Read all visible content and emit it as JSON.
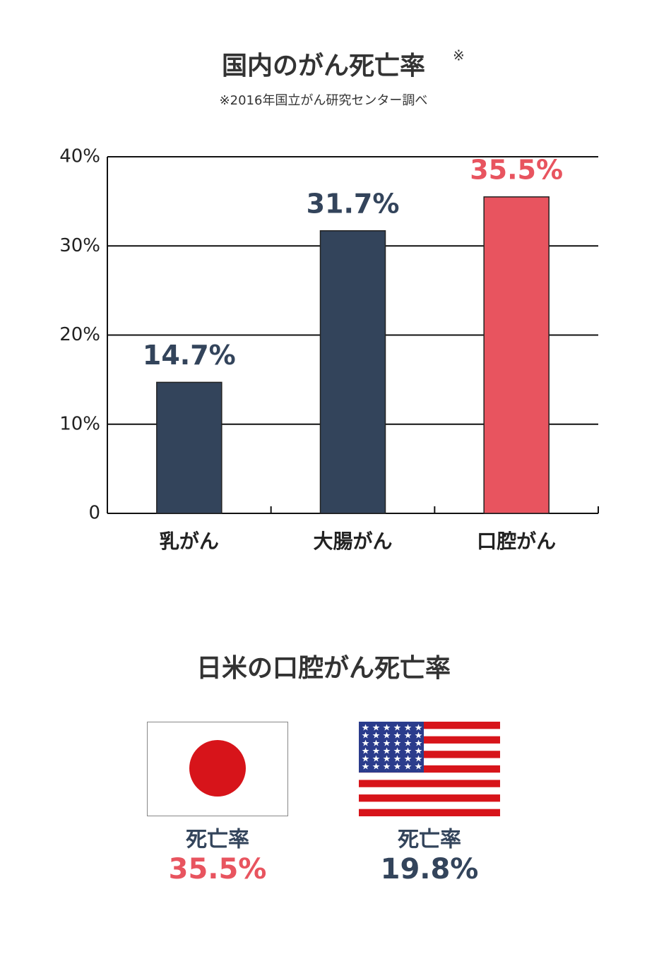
{
  "chart_data": {
    "type": "bar",
    "title": "国内のがん死亡率",
    "title_note": "※",
    "subtitle": "※2016年国立がん研究センター調べ",
    "categories": [
      "乳がん",
      "大腸がん",
      "口腔がん"
    ],
    "values": [
      14.7,
      31.7,
      35.5
    ],
    "value_labels": [
      "14.7%",
      "31.7%",
      "35.5%"
    ],
    "colors": [
      "#33445b",
      "#33445b",
      "#e8545f"
    ],
    "ylim": [
      0,
      40
    ],
    "yticks": [
      0,
      {
        "value": 10,
        "label": "10%"
      },
      {
        "value": 20,
        "label": "20%"
      },
      {
        "value": 30,
        "label": "30%"
      },
      {
        "value": 40,
        "label": "40%"
      }
    ],
    "grid": true
  },
  "comparison": {
    "title": "日米の口腔がん死亡率",
    "items": [
      {
        "label": "死亡率",
        "rate": "35.5%"
      },
      {
        "label": "死亡率",
        "rate": "19.8%"
      }
    ]
  }
}
